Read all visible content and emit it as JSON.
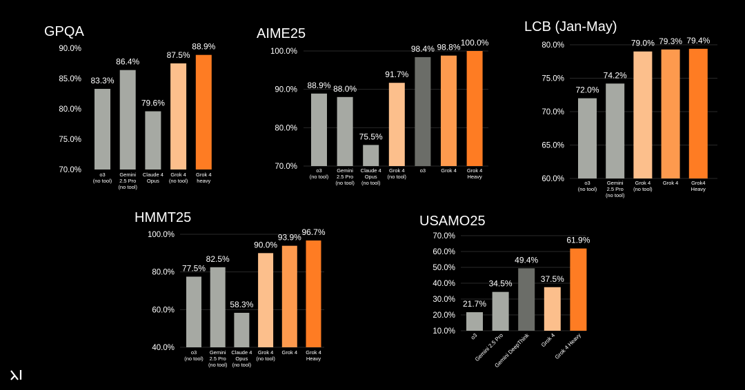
{
  "colors": {
    "background": "#000000",
    "text": "#ffffff",
    "grid": "#2a2a2a",
    "gray": "#a6a9a3",
    "dark_gray": "#6b6d68",
    "light_orange": "#fcbf8c",
    "mid_orange": "#fd9a4e",
    "orange": "#fe7c23"
  },
  "logo": {
    "name": "xai-logo-icon"
  },
  "chart_data": [
    {
      "type": "bar",
      "title": "GPQA",
      "ylim": [
        70,
        90
      ],
      "yticks": [
        "90.0%",
        "85.0%",
        "80.0%",
        "75.0%",
        "70.0%"
      ],
      "categories": [
        [
          "o3",
          "(no tool)"
        ],
        [
          "Gemini",
          "2.5 Pro",
          "(no tool)"
        ],
        [
          "Claude 4",
          "Opus"
        ],
        [
          "Grok 4",
          "(no tool)"
        ],
        [
          "Grok 4",
          "heavy"
        ]
      ],
      "values": [
        83.3,
        86.4,
        79.6,
        87.5,
        88.9
      ],
      "labels": [
        "83.3%",
        "86.4%",
        "79.6%",
        "87.5%",
        "88.9%"
      ],
      "bar_colors": [
        "gray",
        "gray",
        "gray",
        "light_orange",
        "orange"
      ],
      "grid": false
    },
    {
      "type": "bar",
      "title": "AIME25",
      "ylim": [
        70,
        100
      ],
      "yticks": [
        "100.0%",
        "90.0%",
        "80.0%",
        "70.0%"
      ],
      "categories": [
        [
          "o3",
          "(no tool)"
        ],
        [
          "Gemini",
          "2.5 Pro",
          "(no tool)"
        ],
        [
          "Claude 4",
          "Opus",
          "(no tool)"
        ],
        [
          "Grok 4",
          "(no tool)"
        ],
        [
          "o3"
        ],
        [
          "Grok 4"
        ],
        [
          "Grok 4",
          "Heavy"
        ]
      ],
      "values": [
        88.9,
        88.0,
        75.5,
        91.7,
        98.4,
        98.8,
        100.0
      ],
      "labels": [
        "88.9%",
        "88.0%",
        "75.5%",
        "91.7%",
        "98.4%",
        "98.8%",
        "100.0%"
      ],
      "bar_colors": [
        "gray",
        "gray",
        "gray",
        "light_orange",
        "dark_gray",
        "mid_orange",
        "orange"
      ],
      "grid": true
    },
    {
      "type": "bar",
      "title": "LCB (Jan-May)",
      "ylim": [
        60,
        80
      ],
      "yticks": [
        "80.0%",
        "75.0%",
        "70.0%",
        "65.0%",
        "60.0%"
      ],
      "categories": [
        [
          "o3",
          "(no tool)"
        ],
        [
          "Gemini",
          "2.5 Pro",
          "(no tool)"
        ],
        [
          "Grok 4",
          "(no tool)"
        ],
        [
          "Grok 4"
        ],
        [
          "Grok4",
          "Heavy"
        ]
      ],
      "values": [
        72.0,
        74.2,
        79.0,
        79.3,
        79.4
      ],
      "labels": [
        "72.0%",
        "74.2%",
        "79.0%",
        "79.3%",
        "79.4%"
      ],
      "bar_colors": [
        "gray",
        "gray",
        "light_orange",
        "mid_orange",
        "orange"
      ],
      "grid": true
    },
    {
      "type": "bar",
      "title": "HMMT25",
      "ylim": [
        40,
        100
      ],
      "yticks": [
        "100.0%",
        "80.0%",
        "60.0%",
        "40.0%"
      ],
      "categories": [
        [
          "o3",
          "(no tool)"
        ],
        [
          "Gemini",
          "2.5 Pro",
          "(no tool)"
        ],
        [
          "Claude 4",
          "Opus",
          "(no tool)"
        ],
        [
          "Grok 4",
          "(no tool)"
        ],
        [
          "Grok 4"
        ],
        [
          "Grok 4",
          "Heavy"
        ]
      ],
      "values": [
        77.5,
        82.5,
        58.3,
        90.0,
        93.9,
        96.7
      ],
      "labels": [
        "77.5%",
        "82.5%",
        "58.3%",
        "90.0%",
        "93.9%",
        "96.7%"
      ],
      "bar_colors": [
        "gray",
        "gray",
        "gray",
        "light_orange",
        "mid_orange",
        "orange"
      ],
      "grid": true
    },
    {
      "type": "bar",
      "title": "USAMO25",
      "ylim": [
        10,
        70
      ],
      "yticks": [
        "70.0%",
        "60.0%",
        "50.0%",
        "40.0%",
        "30.0%",
        "20.0%",
        "10.0%"
      ],
      "categories": [
        [
          "o3"
        ],
        [
          "Gemini 2.5 Pro"
        ],
        [
          "Gemini DeepThink"
        ],
        [
          "Grok 4"
        ],
        [
          "Grok 4 Heavy"
        ]
      ],
      "values": [
        21.7,
        34.5,
        49.4,
        37.5,
        61.9
      ],
      "labels": [
        "21.7%",
        "34.5%",
        "49.4%",
        "37.5%",
        "61.9%"
      ],
      "bar_colors": [
        "gray",
        "gray",
        "dark_gray",
        "light_orange",
        "orange"
      ],
      "grid": true,
      "rotated_labels": true
    }
  ]
}
